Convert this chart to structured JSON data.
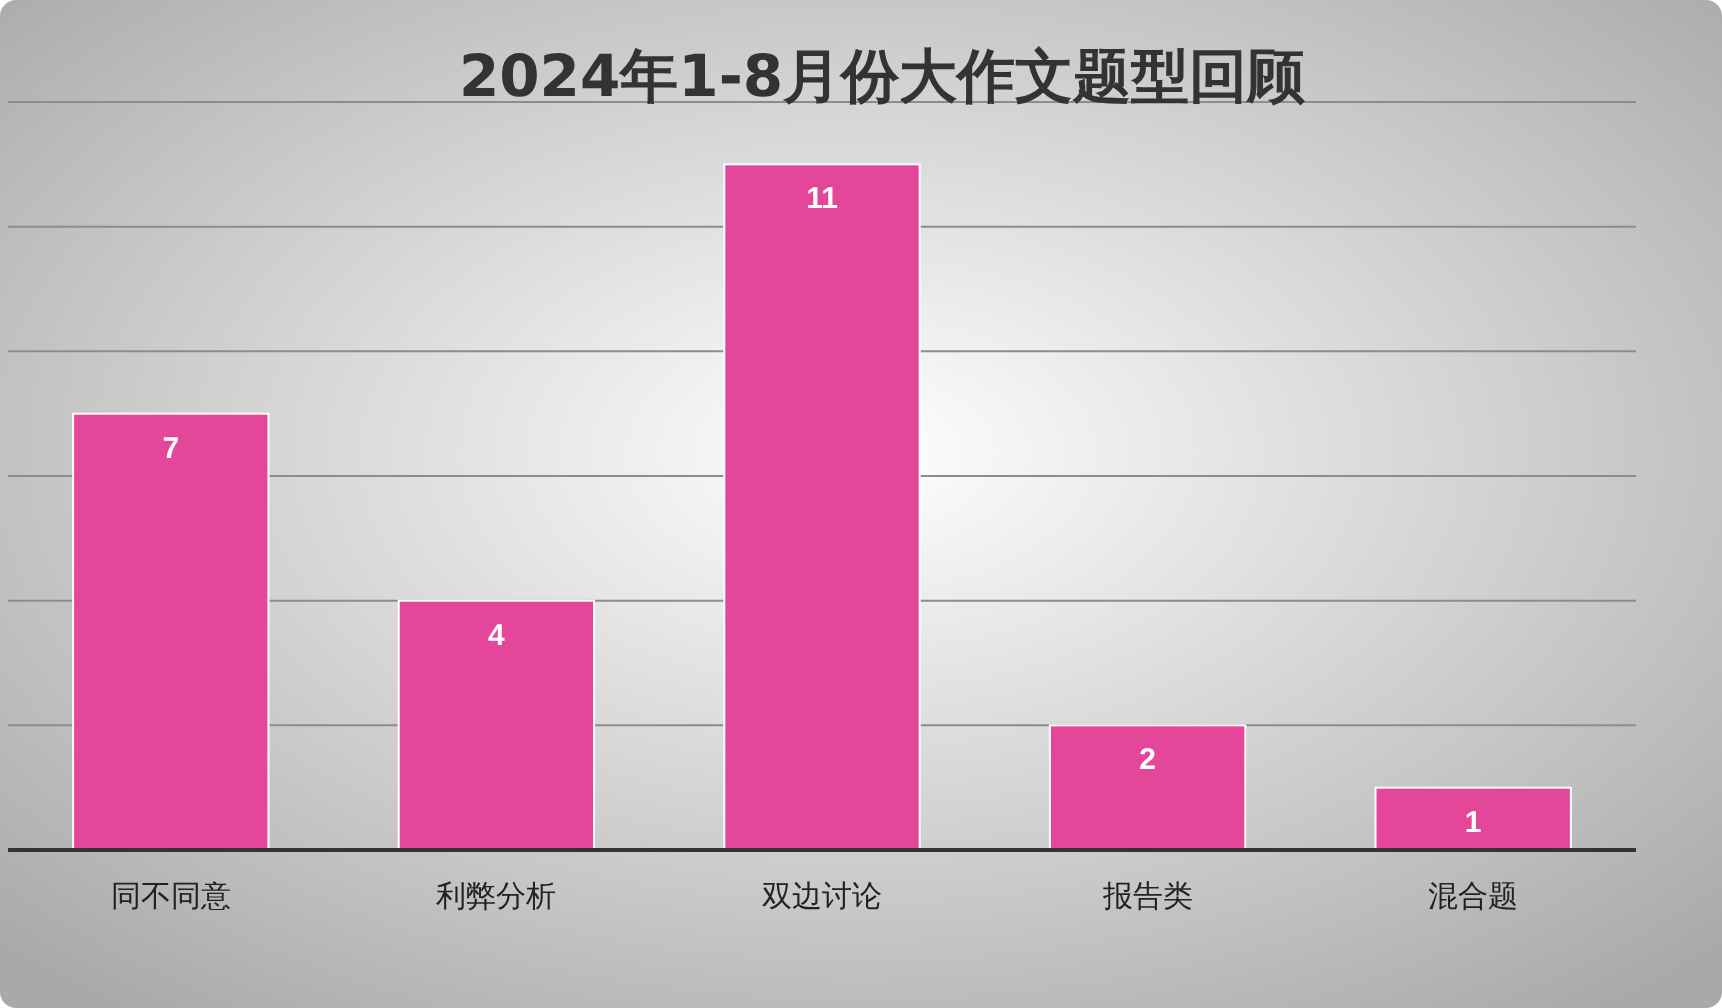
{
  "chart_data": {
    "type": "bar",
    "title": "2024年1-8月份大作文题型回顾",
    "categories": [
      "同不同意",
      "利弊分析",
      "双边讨论",
      "报告类",
      "混合题"
    ],
    "values": [
      7,
      4,
      11,
      2,
      1
    ],
    "color": "#e4479a",
    "ylim": [
      0,
      12
    ],
    "yticks": [
      {
        "value": 0,
        "label": null
      },
      {
        "value": 2,
        "label": null
      },
      {
        "value": 4,
        "label": null
      },
      {
        "value": 6,
        "label": null
      },
      {
        "value": 8,
        "label": null
      },
      {
        "value": 10,
        "label": null
      },
      {
        "value": 12,
        "label": null
      }
    ],
    "tick_labels": "x",
    "grid": "y",
    "data_labels": true
  }
}
